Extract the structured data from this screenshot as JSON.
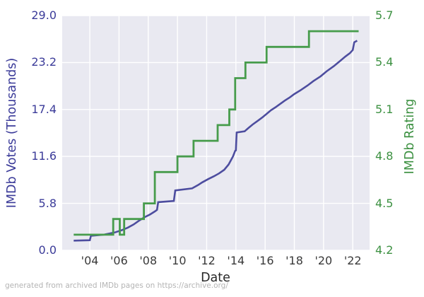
{
  "footer": "generated from archived IMDb pages on https://archive.org/",
  "chart_data": {
    "type": "line",
    "title": "",
    "xlabel": "Date",
    "grid": true,
    "legend": "none",
    "plot_bg": "#E9E9F1",
    "grid_color": "#FFFFFF",
    "x_domain": [
      2002.11,
      2023.15
    ],
    "x_ticks": {
      "values": [
        2004,
        2006,
        2008,
        2010,
        2012,
        2014,
        2016,
        2018,
        2020,
        2022
      ],
      "labels": [
        "'04",
        "'06",
        "'08",
        "'10",
        "'12",
        "'14",
        "'16",
        "'18",
        "'20",
        "'22"
      ]
    },
    "left_axis": {
      "label": "IMDb Votes (Thousands)",
      "range": [
        0,
        29
      ],
      "tick_values": [
        0.0,
        5.8,
        11.6,
        17.4,
        23.2,
        29.0
      ],
      "tick_labels": [
        "0.0",
        "5.8",
        "11.6",
        "17.4",
        "23.2",
        "29.0"
      ],
      "color": "#3B3B99"
    },
    "right_axis": {
      "label": "IMDb Rating",
      "range": [
        4.2,
        5.7
      ],
      "tick_values": [
        4.2,
        4.5,
        4.8,
        5.1,
        5.4,
        5.7
      ],
      "tick_labels": [
        "4.2",
        "4.5",
        "4.8",
        "5.1",
        "5.4",
        "5.7"
      ],
      "color": "#3D9142"
    },
    "series": [
      {
        "name": "IMDb Votes (Thousands)",
        "axis": "left",
        "color": "#4D4D9F",
        "width": 2.6,
        "style": "line",
        "points": [
          [
            2002.9,
            1.2
          ],
          [
            2004.0,
            1.25
          ],
          [
            2004.08,
            1.8
          ],
          [
            2005.0,
            1.95
          ],
          [
            2005.7,
            2.2
          ],
          [
            2006.2,
            2.5
          ],
          [
            2006.6,
            2.8
          ],
          [
            2007.0,
            3.2
          ],
          [
            2007.4,
            3.7
          ],
          [
            2007.75,
            4.1
          ],
          [
            2008.1,
            4.4
          ],
          [
            2008.45,
            4.8
          ],
          [
            2008.6,
            5.0
          ],
          [
            2008.68,
            5.95
          ],
          [
            2009.75,
            6.1
          ],
          [
            2009.85,
            7.4
          ],
          [
            2011.0,
            7.65
          ],
          [
            2011.4,
            8.05
          ],
          [
            2011.7,
            8.4
          ],
          [
            2012.1,
            8.8
          ],
          [
            2012.5,
            9.15
          ],
          [
            2012.85,
            9.5
          ],
          [
            2013.2,
            9.95
          ],
          [
            2013.5,
            10.6
          ],
          [
            2013.8,
            11.6
          ],
          [
            2013.95,
            12.3
          ],
          [
            2014.0,
            12.35
          ],
          [
            2014.05,
            14.55
          ],
          [
            2014.6,
            14.7
          ],
          [
            2014.85,
            15.1
          ],
          [
            2015.15,
            15.55
          ],
          [
            2015.5,
            16.0
          ],
          [
            2015.8,
            16.4
          ],
          [
            2016.1,
            16.85
          ],
          [
            2016.4,
            17.3
          ],
          [
            2016.7,
            17.65
          ],
          [
            2017.0,
            18.05
          ],
          [
            2017.35,
            18.5
          ],
          [
            2017.7,
            18.9
          ],
          [
            2018.0,
            19.3
          ],
          [
            2018.4,
            19.75
          ],
          [
            2018.9,
            20.35
          ],
          [
            2019.3,
            20.9
          ],
          [
            2019.8,
            21.5
          ],
          [
            2020.2,
            22.1
          ],
          [
            2020.7,
            22.75
          ],
          [
            2021.1,
            23.35
          ],
          [
            2021.5,
            23.95
          ],
          [
            2021.8,
            24.35
          ],
          [
            2022.0,
            24.75
          ],
          [
            2022.1,
            25.7
          ],
          [
            2022.3,
            25.9
          ]
        ]
      },
      {
        "name": "IMDb Rating",
        "axis": "right",
        "color": "#479C4C",
        "width": 2.8,
        "style": "step-after",
        "points": [
          [
            2002.9,
            4.3
          ],
          [
            2005.6,
            4.4
          ],
          [
            2006.05,
            4.3
          ],
          [
            2006.35,
            4.4
          ],
          [
            2007.7,
            4.5
          ],
          [
            2008.45,
            4.7
          ],
          [
            2010.0,
            4.8
          ],
          [
            2011.1,
            4.9
          ],
          [
            2012.75,
            5.0
          ],
          [
            2013.55,
            5.1
          ],
          [
            2013.95,
            5.3
          ],
          [
            2014.65,
            5.4
          ],
          [
            2016.1,
            5.5
          ],
          [
            2019.0,
            5.6
          ],
          [
            2022.4,
            5.6
          ]
        ]
      }
    ]
  }
}
